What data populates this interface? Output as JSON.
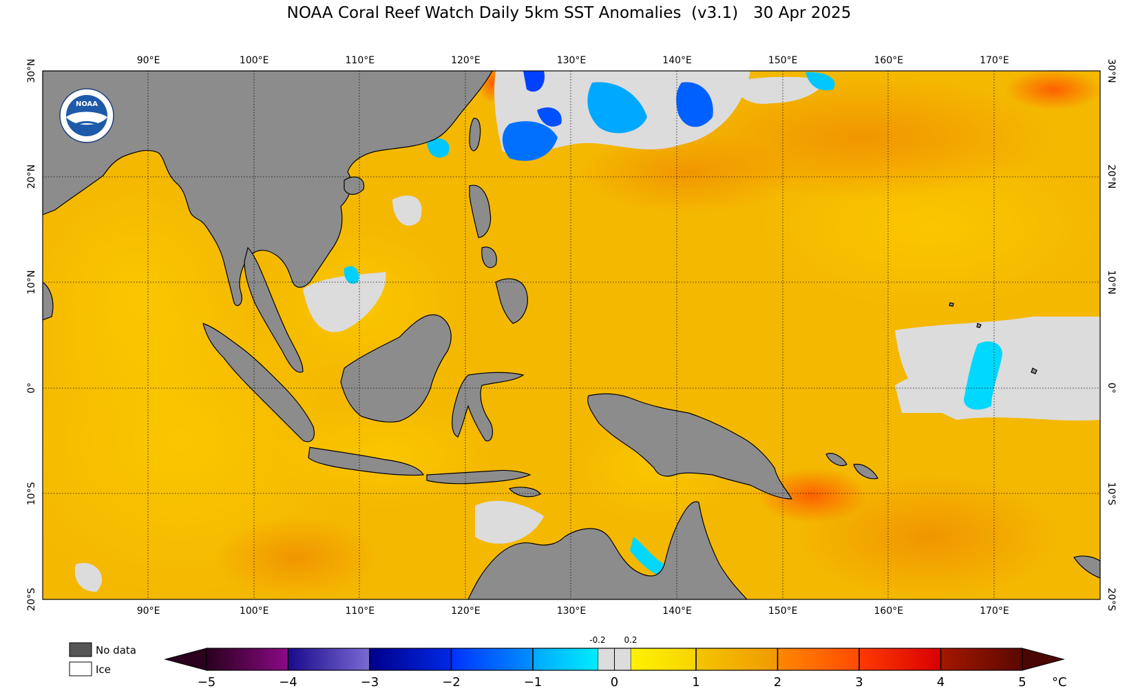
{
  "title": "NOAA Coral Reef Watch Daily 5km SST Anomalies  (v3.1)   30 Apr 2025",
  "map": {
    "lon_range": [
      80,
      180
    ],
    "lat_range": [
      -20,
      30
    ],
    "lon_ticks": [
      "90°E",
      "100°E",
      "110°E",
      "120°E",
      "130°E",
      "140°E",
      "150°E",
      "160°E",
      "170°E"
    ],
    "lat_ticks": [
      "30°N",
      "20°N",
      "10°N",
      "0°",
      "10°S",
      "20°S"
    ],
    "land_color": "#8c8c8c",
    "nodata_color": "#555555",
    "ice_color": "#ffffff"
  },
  "legend": {
    "no_data": "No data",
    "ice": "Ice"
  },
  "colorbar": {
    "min": -5,
    "max": 5,
    "unit": "°C",
    "tick_labels": [
      "−5",
      "−4",
      "−3",
      "−2",
      "−1",
      "0",
      "1",
      "2",
      "3",
      "4",
      "5"
    ],
    "neutral_low": "-0.2",
    "neutral_high": "0.2",
    "neutral_color": "#dcdcdc",
    "segments": [
      {
        "from": -5,
        "to": -4,
        "colors": [
          "#2a001e",
          "#8a0a85"
        ]
      },
      {
        "from": -4,
        "to": -3,
        "colors": [
          "#1a0a8c",
          "#7a6ad2"
        ]
      },
      {
        "from": -3,
        "to": -2,
        "colors": [
          "#00008a",
          "#0028e6"
        ]
      },
      {
        "from": -2,
        "to": -1,
        "colors": [
          "#0032ff",
          "#0090ff"
        ]
      },
      {
        "from": -1,
        "to": -0.2,
        "colors": [
          "#00a8ff",
          "#00ecff"
        ]
      },
      {
        "from": 0.2,
        "to": 1,
        "colors": [
          "#fff200",
          "#f7d400"
        ]
      },
      {
        "from": 1,
        "to": 2,
        "colors": [
          "#f5c400",
          "#ef9a00"
        ]
      },
      {
        "from": 2,
        "to": 3,
        "colors": [
          "#ff8800",
          "#ff4a00"
        ]
      },
      {
        "from": 3,
        "to": 4,
        "colors": [
          "#ff3a00",
          "#d80000"
        ]
      },
      {
        "from": 4,
        "to": 5,
        "colors": [
          "#a41800",
          "#5a0800"
        ]
      }
    ]
  },
  "logo": {
    "text": "NOAA"
  }
}
